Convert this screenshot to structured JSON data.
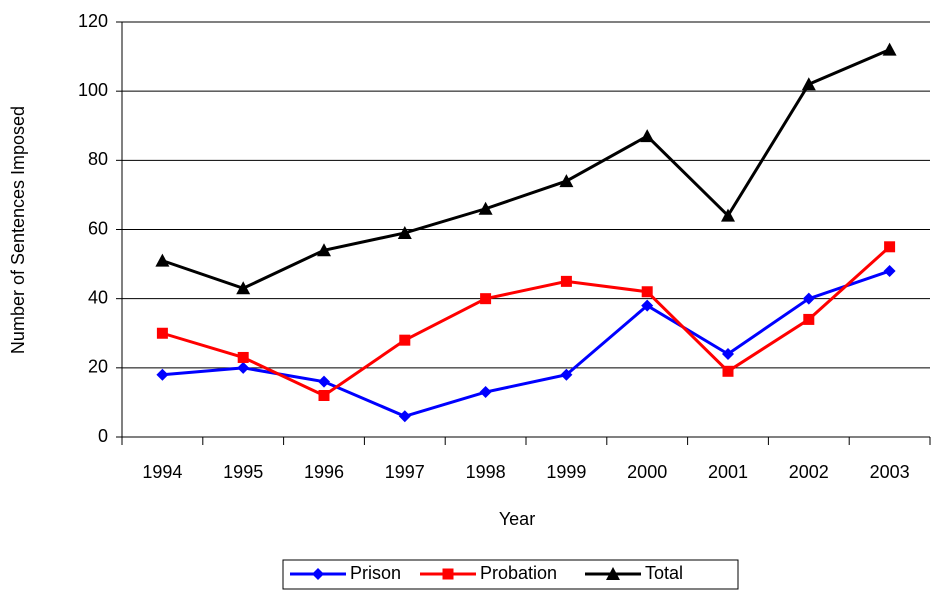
{
  "chart_data": {
    "type": "line",
    "x_label": "Year",
    "y_label": "Number of Sentences Imposed",
    "categories": [
      "1994",
      "1995",
      "1996",
      "1997",
      "1998",
      "1999",
      "2000",
      "2001",
      "2002",
      "2003"
    ],
    "series": [
      {
        "name": "Prison",
        "color": "#0000ff",
        "marker": "diamond",
        "values": [
          18,
          20,
          16,
          6,
          13,
          18,
          38,
          24,
          40,
          48
        ]
      },
      {
        "name": "Probation",
        "color": "#ff0000",
        "marker": "square",
        "values": [
          30,
          23,
          12,
          28,
          40,
          45,
          42,
          19,
          34,
          55
        ]
      },
      {
        "name": "Total",
        "color": "#000000",
        "marker": "triangle",
        "values": [
          51,
          43,
          54,
          59,
          66,
          74,
          87,
          64,
          102,
          112
        ]
      }
    ],
    "ylim": [
      0,
      120
    ],
    "yticks": [
      0,
      20,
      40,
      60,
      80,
      100,
      120
    ],
    "grid": true,
    "legend": "bottom"
  }
}
